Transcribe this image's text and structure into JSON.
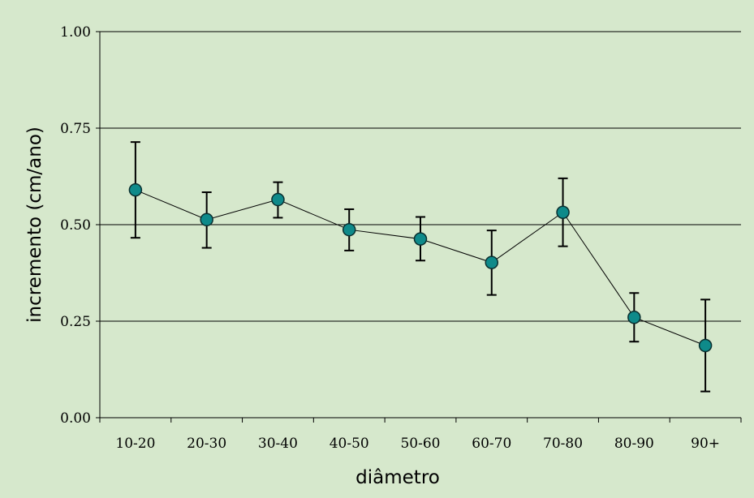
{
  "chart_data": {
    "type": "line",
    "xlabel": "diâmetro",
    "ylabel": "incremento (cm/ano)",
    "categories": [
      "10-20",
      "20-30",
      "30-40",
      "40-50",
      "50-60",
      "60-70",
      "70-80",
      "80-90",
      "90+"
    ],
    "series": [
      {
        "values": [
          0.59,
          0.513,
          0.565,
          0.487,
          0.463,
          0.402,
          0.532,
          0.26,
          0.187
        ],
        "error_low": [
          0.466,
          0.44,
          0.518,
          0.433,
          0.407,
          0.318,
          0.444,
          0.197,
          0.068
        ],
        "error_high": [
          0.714,
          0.584,
          0.61,
          0.54,
          0.52,
          0.485,
          0.62,
          0.323,
          0.306
        ],
        "color": "#0e8a8a"
      }
    ],
    "ylim": [
      0,
      1
    ],
    "yticks": [
      "0.00",
      "0.25",
      "0.50",
      "0.75",
      "1.00"
    ],
    "grid": true,
    "background": "#d6e8cc"
  }
}
